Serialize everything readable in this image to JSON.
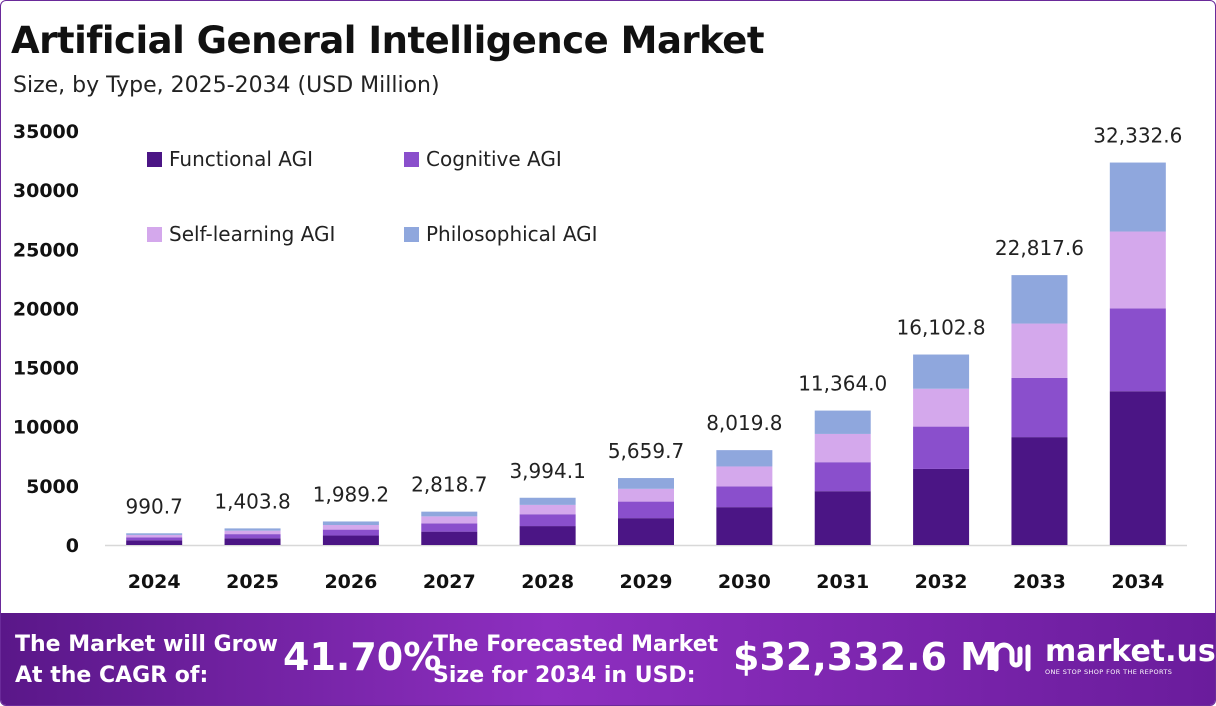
{
  "header": {
    "title": "Artificial General Intelligence Market",
    "subtitle": "Size, by Type, 2025-2034 (USD Million)"
  },
  "chart_data": {
    "type": "bar",
    "stacked": true,
    "categories": [
      "2024",
      "2025",
      "2026",
      "2027",
      "2028",
      "2029",
      "2030",
      "2031",
      "2032",
      "2033",
      "2034"
    ],
    "series": [
      {
        "name": "Functional AGI",
        "color": "#4b1585",
        "values": [
          400,
          570,
          800,
          1130,
          1600,
          2270,
          3200,
          4550,
          6430,
          9120,
          13000
        ]
      },
      {
        "name": "Cognitive AGI",
        "color": "#8a4fcc",
        "values": [
          250,
          350,
          500,
          700,
          1000,
          1400,
          1750,
          2450,
          3580,
          5000,
          7000
        ]
      },
      {
        "name": "Self-learning AGI",
        "color": "#d4a8ec",
        "values": [
          200,
          290,
          390,
          590,
          790,
          1080,
          1690,
          2390,
          3200,
          4600,
          6500
        ]
      },
      {
        "name": "Philosophical AGI",
        "color": "#8fa7dd",
        "values": [
          140.7,
          193.8,
          299.2,
          398.7,
          604.1,
          909.7,
          1379.8,
          1974.0,
          2892.8,
          4097.6,
          5832.6
        ]
      }
    ],
    "totals": [
      990.7,
      1403.8,
      1989.2,
      2818.7,
      3994.1,
      5659.7,
      8019.8,
      11364.0,
      16102.8,
      22817.6,
      32332.6
    ],
    "total_labels": [
      "990.7",
      "1,403.8",
      "1,989.2",
      "2,818.7",
      "3,994.1",
      "5,659.7",
      "8,019.8",
      "11,364.0",
      "16,102.8",
      "22,817.6",
      "32,332.6"
    ],
    "y_ticks": [
      "0",
      "5000",
      "10000",
      "15000",
      "20000",
      "25000",
      "30000",
      "35000"
    ],
    "ylim": [
      0,
      35000
    ],
    "xlabel": "",
    "ylabel": "",
    "grid": false,
    "legend_position": "top-left"
  },
  "banner": {
    "cagr_label_line1": "The Market will Grow",
    "cagr_label_line2": "At the CAGR of:",
    "cagr_value": "41.70%",
    "forecast_label_line1": "The Forecasted Market",
    "forecast_label_line2": "Size for 2034 in USD:",
    "forecast_value": "$32,332.6 M",
    "logo_name": "market.us",
    "logo_tagline": "ONE STOP SHOP FOR THE REPORTS",
    "logo_icon": "market-us-logo-icon"
  }
}
